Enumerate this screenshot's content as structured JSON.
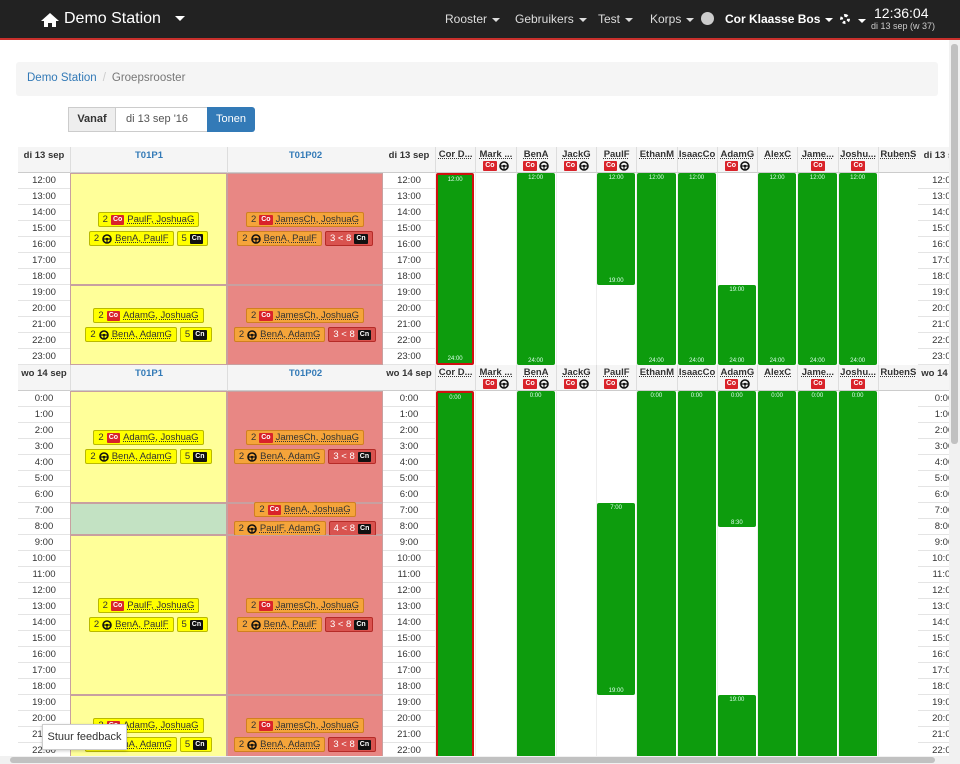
{
  "nav": {
    "brand": "Demo Station",
    "menu": [
      "Rooster",
      "Gebruikers",
      "Test",
      "Korps"
    ],
    "user": "Cor Klaasse Bos",
    "clock": {
      "time": "12:36:04",
      "date": "di 13 sep (w 37)"
    }
  },
  "breadcrumb": {
    "items": [
      "Demo Station",
      "Groepsrooster"
    ],
    "separator": "/"
  },
  "form": {
    "label": "Vanaf",
    "input": "di 13 sep '16",
    "button": "Tonen"
  },
  "groups": [
    "T01P1",
    "T01P02"
  ],
  "people": [
    {
      "name": "Cor D...",
      "selected": true
    },
    {
      "name": "Mark ...",
      "tags": [
        "Co"
      ],
      "wheel": true
    },
    {
      "name": "BenA",
      "tags": [
        "Co"
      ],
      "wheel": true
    },
    {
      "name": "JackG",
      "tags": [
        "Co"
      ],
      "wheel": true
    },
    {
      "name": "PaulF",
      "tags": [
        "Co"
      ],
      "wheel": true
    },
    {
      "name": "EthanM"
    },
    {
      "name": "IsaacCo"
    },
    {
      "name": "AdamG",
      "tags": [
        "Co"
      ],
      "wheel": true
    },
    {
      "name": "AlexC"
    },
    {
      "name": "Jame...",
      "tags": [
        "Co"
      ]
    },
    {
      "name": "Joshu...",
      "tags": [
        "Co"
      ]
    },
    {
      "name": "RubenS"
    }
  ],
  "days": [
    {
      "label": "di 13 sep",
      "hours": [
        "12:00",
        "13:00",
        "14:00",
        "15:00",
        "16:00",
        "17:00",
        "18:00",
        "19:00",
        "20:00",
        "21:00",
        "22:00",
        "23:00"
      ],
      "blocks": [
        [
          {
            "color": "#ffff99",
            "lines": [
              {
                "count": 2,
                "tag": "Co",
                "names": "PaulF, JoshuaG"
              },
              {
                "count": 2,
                "wheel": true,
                "names": "BenA, PaulF",
                "need": {
                  "text": 5,
                  "tag": "Cn"
                }
              }
            ]
          },
          {
            "color": "#ffff99",
            "lines": [
              {
                "count": 2,
                "tag": "Co",
                "names": "AdamG, JoshuaG"
              },
              {
                "count": 2,
                "wheel": true,
                "names": "BenA, AdamG",
                "need": {
                  "text": 5,
                  "tag": "Cn"
                }
              }
            ]
          }
        ],
        [
          {
            "color": "#e88784",
            "lines": [
              {
                "count": 2,
                "tag": "Co",
                "names": "JamesCh, JoshuaG"
              },
              {
                "count": 2,
                "wheel": true,
                "names": "BenA, PaulF",
                "need": {
                  "text": "3 < 8",
                  "tag": "Cn",
                  "alert": true
                }
              }
            ]
          },
          {
            "color": "#e88784",
            "lines": [
              {
                "count": 2,
                "tag": "Co",
                "names": "JamesCh, JoshuaG"
              },
              {
                "count": 2,
                "wheel": true,
                "names": "BenA, AdamG",
                "need": {
                  "text": "3 < 8",
                  "tag": "Cn",
                  "alert": true
                }
              }
            ]
          }
        ]
      ],
      "shifts": [
        [
          {
            "start": "12:00",
            "end": "24:00"
          }
        ],
        [],
        [
          {
            "start": "12:00",
            "end": "24:00"
          }
        ],
        [],
        [
          {
            "start": "12:00",
            "end": "19:00"
          }
        ],
        [
          {
            "start": "12:00",
            "end": "24:00"
          }
        ],
        [
          {
            "start": "12:00",
            "end": "24:00"
          }
        ],
        [
          {
            "start": "19:00",
            "end": "24:00"
          }
        ],
        [
          {
            "start": "12:00",
            "end": "24:00"
          }
        ],
        [
          {
            "start": "12:00",
            "end": "24:00"
          }
        ],
        [
          {
            "start": "12:00",
            "end": "24:00"
          }
        ],
        []
      ]
    },
    {
      "label": "wo 14 sep",
      "hours": [
        "0:00",
        "1:00",
        "2:00",
        "3:00",
        "4:00",
        "5:00",
        "6:00",
        "7:00",
        "8:00",
        "9:00",
        "10:00",
        "11:00",
        "12:00",
        "13:00",
        "14:00",
        "15:00",
        "16:00",
        "17:00",
        "18:00",
        "19:00",
        "20:00",
        "21:00",
        "22:00"
      ],
      "blocks": [
        [
          {
            "color": "#ffff99",
            "lines": [
              {
                "count": 2,
                "tag": "Co",
                "names": "AdamG, JoshuaG"
              },
              {
                "count": 2,
                "wheel": true,
                "names": "BenA, AdamG",
                "need": {
                  "text": 5,
                  "tag": "Cn"
                }
              }
            ]
          },
          {
            "color": "#c3e2c3"
          },
          {
            "color": "#ffff99",
            "lines": [
              {
                "count": 2,
                "tag": "Co",
                "names": "PaulF, JoshuaG"
              },
              {
                "count": 2,
                "wheel": true,
                "names": "BenA, PaulF",
                "need": {
                  "text": 5,
                  "tag": "Cn"
                }
              }
            ]
          },
          {
            "color": "#ffff99",
            "lines": [
              {
                "count": 2,
                "tag": "Co",
                "names": "AdamG, JoshuaG"
              },
              {
                "count": 2,
                "wheel": true,
                "names": "BenA, AdamG",
                "need": {
                  "text": 5,
                  "tag": "Cn"
                }
              }
            ]
          }
        ],
        [
          {
            "color": "#e88784",
            "lines": [
              {
                "count": 2,
                "tag": "Co",
                "names": "JamesCh, JoshuaG"
              },
              {
                "count": 2,
                "wheel": true,
                "names": "BenA, AdamG",
                "need": {
                  "text": "3 < 8",
                  "tag": "Cn",
                  "alert": true
                }
              }
            ]
          },
          {
            "color": "#e88784",
            "lines": [
              {
                "count": 2,
                "tag": "Co",
                "names": "BenA, JoshuaG"
              },
              {
                "count": 2,
                "wheel": true,
                "names": "PaulF, AdamG",
                "need": {
                  "text": "4 < 8",
                  "tag": "Cn",
                  "alert": true
                }
              }
            ]
          },
          {
            "color": "#e88784",
            "lines": [
              {
                "count": 2,
                "tag": "Co",
                "names": "JamesCh, JoshuaG"
              },
              {
                "count": 2,
                "wheel": true,
                "names": "BenA, PaulF",
                "need": {
                  "text": "3 < 8",
                  "tag": "Cn",
                  "alert": true
                }
              }
            ]
          },
          {
            "color": "#e88784",
            "lines": [
              {
                "count": 2,
                "tag": "Co",
                "names": "JamesCh, JoshuaG"
              },
              {
                "count": 2,
                "wheel": true,
                "names": "BenA, AdamG",
                "need": {
                  "text": "3 < 8",
                  "tag": "Cn",
                  "alert": true
                }
              }
            ]
          }
        ]
      ],
      "shifts": [
        [
          {
            "start": "0:00"
          }
        ],
        [],
        [
          {
            "start": "0:00"
          }
        ],
        [],
        [
          {
            "start": "7:00",
            "end": "19:00"
          }
        ],
        [
          {
            "start": "0:00"
          }
        ],
        [
          {
            "start": "0:00"
          }
        ],
        [
          {
            "start": "0:00",
            "end": "8:30"
          },
          {
            "start": "19:00"
          }
        ],
        [
          {
            "start": "0:00"
          }
        ],
        [
          {
            "start": "0:00"
          }
        ],
        [
          {
            "start": "0:00"
          }
        ],
        []
      ]
    }
  ],
  "feedback": "Stuur feedback"
}
